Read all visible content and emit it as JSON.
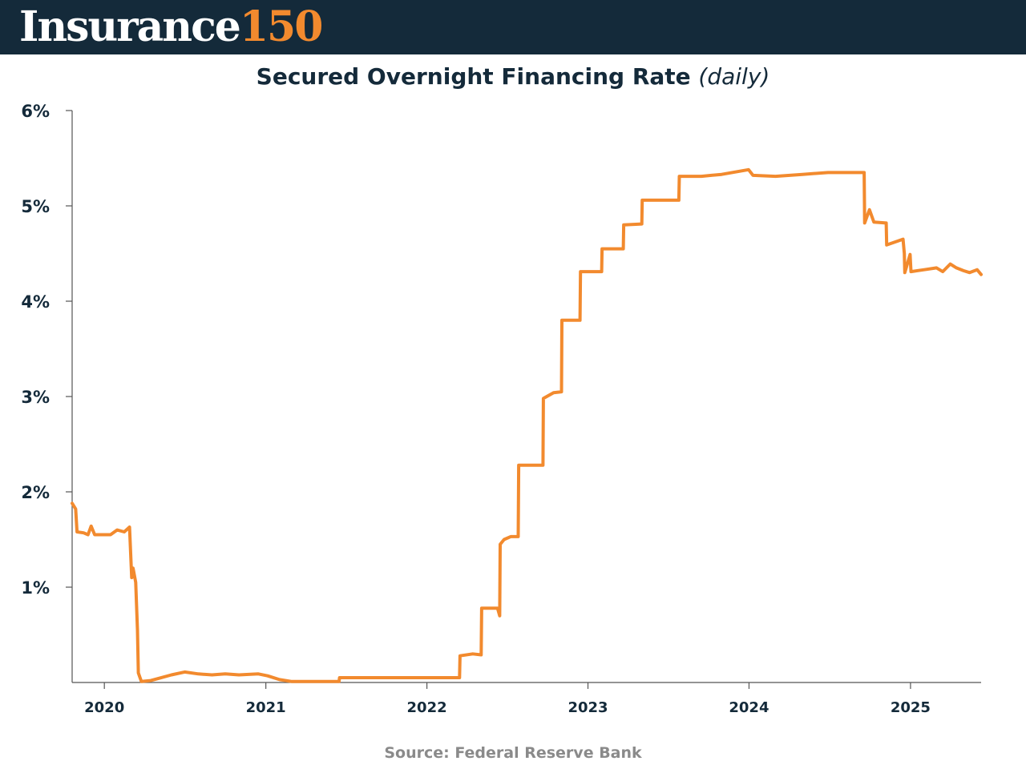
{
  "brand": {
    "word": "Insurance",
    "number": "150"
  },
  "colors": {
    "header_bg": "#142a3a",
    "accent": "#f28a2e",
    "axis_text": "#142a3a",
    "source_text": "#8a8a8a"
  },
  "source": "Source: Federal Reserve Bank",
  "chart_data": {
    "type": "line",
    "title": "Secured Overnight Financing Rate",
    "subtitle": "(daily)",
    "xlabel": "",
    "ylabel": "",
    "x_axis": {
      "type": "date",
      "range": [
        "2019-10-20",
        "2025-06-10"
      ],
      "ticks": [
        "2020-01-01",
        "2021-01-01",
        "2022-01-01",
        "2023-01-01",
        "2024-01-01",
        "2025-01-01"
      ],
      "tick_labels": [
        "2020",
        "2021",
        "2022",
        "2023",
        "2024",
        "2025"
      ]
    },
    "y_axis": {
      "range": [
        0,
        6
      ],
      "ticks": [
        1,
        2,
        3,
        4,
        5,
        6
      ],
      "tick_labels": [
        "1%",
        "2%",
        "3%",
        "4%",
        "5%",
        "6%"
      ]
    },
    "grid": false,
    "legend": "none",
    "series": [
      {
        "color": "#f28a2e",
        "points": [
          [
            "2019-10-20",
            1.88
          ],
          [
            "2019-10-28",
            1.82
          ],
          [
            "2019-10-31",
            1.58
          ],
          [
            "2019-11-15",
            1.57
          ],
          [
            "2019-11-25",
            1.55
          ],
          [
            "2019-12-02",
            1.64
          ],
          [
            "2019-12-10",
            1.55
          ],
          [
            "2019-12-31",
            1.55
          ],
          [
            "2020-01-15",
            1.55
          ],
          [
            "2020-01-30",
            1.6
          ],
          [
            "2020-02-15",
            1.58
          ],
          [
            "2020-02-27",
            1.63
          ],
          [
            "2020-03-03",
            1.1
          ],
          [
            "2020-03-06",
            1.2
          ],
          [
            "2020-03-12",
            1.05
          ],
          [
            "2020-03-16",
            0.55
          ],
          [
            "2020-03-18",
            0.1
          ],
          [
            "2020-03-25",
            0.01
          ],
          [
            "2020-04-15",
            0.02
          ],
          [
            "2020-05-01",
            0.04
          ],
          [
            "2020-06-01",
            0.08
          ],
          [
            "2020-07-01",
            0.11
          ],
          [
            "2020-08-01",
            0.09
          ],
          [
            "2020-09-01",
            0.08
          ],
          [
            "2020-10-01",
            0.09
          ],
          [
            "2020-11-01",
            0.08
          ],
          [
            "2020-12-15",
            0.09
          ],
          [
            "2021-01-05",
            0.07
          ],
          [
            "2021-02-01",
            0.03
          ],
          [
            "2021-03-01",
            0.01
          ],
          [
            "2021-06-16",
            0.01
          ],
          [
            "2021-06-17",
            0.05
          ],
          [
            "2021-12-31",
            0.05
          ],
          [
            "2022-03-16",
            0.05
          ],
          [
            "2022-03-17",
            0.28
          ],
          [
            "2022-04-15",
            0.3
          ],
          [
            "2022-05-04",
            0.29
          ],
          [
            "2022-05-05",
            0.78
          ],
          [
            "2022-06-10",
            0.78
          ],
          [
            "2022-06-15",
            0.7
          ],
          [
            "2022-06-16",
            1.45
          ],
          [
            "2022-06-25",
            1.5
          ],
          [
            "2022-07-10",
            1.53
          ],
          [
            "2022-07-27",
            1.53
          ],
          [
            "2022-07-28",
            2.28
          ],
          [
            "2022-09-21",
            2.28
          ],
          [
            "2022-09-22",
            2.98
          ],
          [
            "2022-10-15",
            3.04
          ],
          [
            "2022-11-02",
            3.05
          ],
          [
            "2022-11-03",
            3.8
          ],
          [
            "2022-12-14",
            3.8
          ],
          [
            "2022-12-15",
            4.31
          ],
          [
            "2023-02-01",
            4.31
          ],
          [
            "2023-02-02",
            4.55
          ],
          [
            "2023-03-22",
            4.55
          ],
          [
            "2023-03-23",
            4.8
          ],
          [
            "2023-05-03",
            4.81
          ],
          [
            "2023-05-04",
            5.06
          ],
          [
            "2023-07-26",
            5.06
          ],
          [
            "2023-07-27",
            5.31
          ],
          [
            "2023-09-15",
            5.31
          ],
          [
            "2023-10-31",
            5.33
          ],
          [
            "2023-12-31",
            5.38
          ],
          [
            "2024-01-10",
            5.32
          ],
          [
            "2024-03-01",
            5.31
          ],
          [
            "2024-05-01",
            5.33
          ],
          [
            "2024-06-28",
            5.35
          ],
          [
            "2024-07-31",
            5.35
          ],
          [
            "2024-09-18",
            5.35
          ],
          [
            "2024-09-19",
            4.82
          ],
          [
            "2024-09-30",
            4.96
          ],
          [
            "2024-10-10",
            4.83
          ],
          [
            "2024-11-07",
            4.82
          ],
          [
            "2024-11-08",
            4.59
          ],
          [
            "2024-12-15",
            4.65
          ],
          [
            "2024-12-18",
            4.5
          ],
          [
            "2024-12-19",
            4.3
          ],
          [
            "2024-12-31",
            4.49
          ],
          [
            "2025-01-02",
            4.31
          ],
          [
            "2025-02-01",
            4.33
          ],
          [
            "2025-03-01",
            4.35
          ],
          [
            "2025-03-15",
            4.31
          ],
          [
            "2025-04-01",
            4.39
          ],
          [
            "2025-04-15",
            4.35
          ],
          [
            "2025-05-01",
            4.32
          ],
          [
            "2025-05-15",
            4.3
          ],
          [
            "2025-06-01",
            4.33
          ],
          [
            "2025-06-10",
            4.28
          ]
        ]
      }
    ]
  }
}
